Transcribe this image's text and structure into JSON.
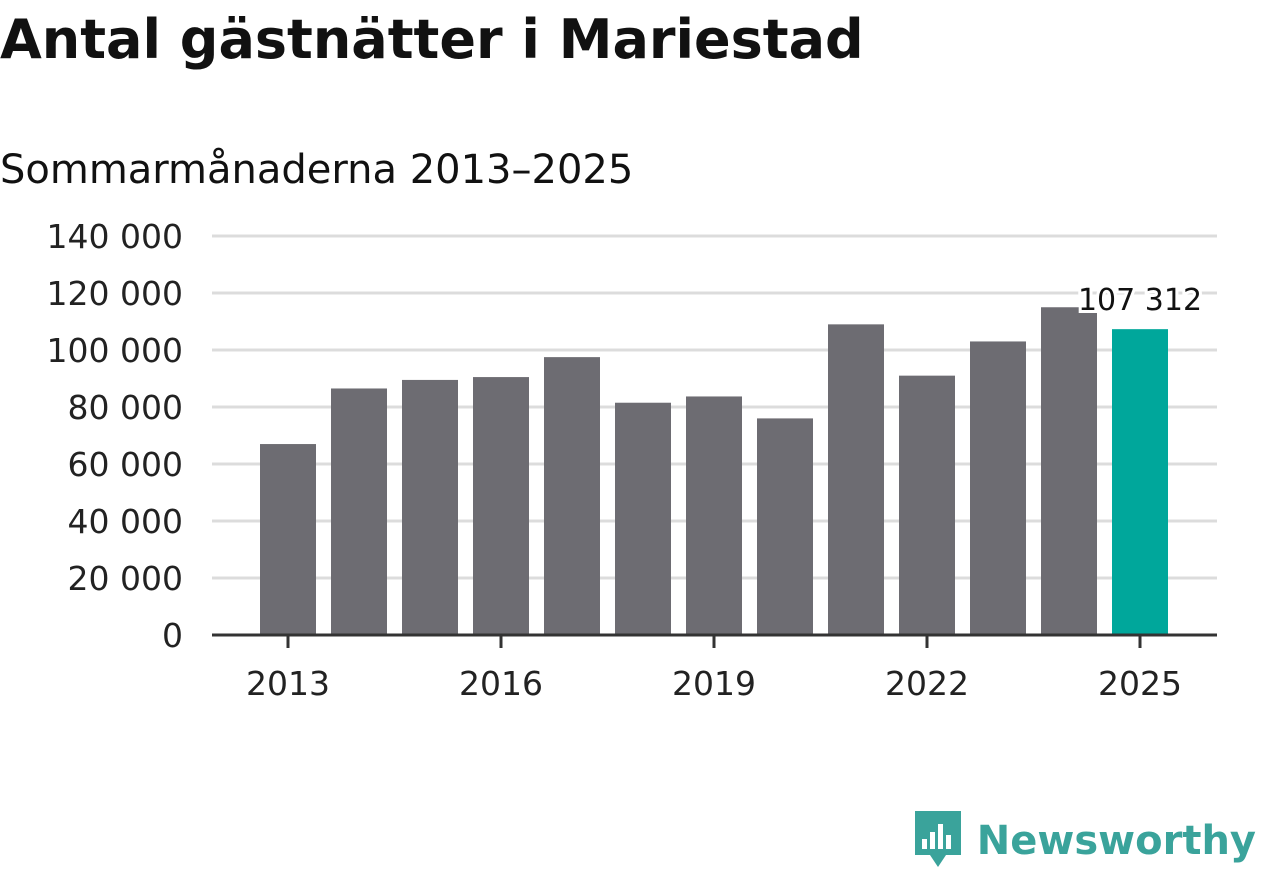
{
  "header": {
    "title": "Antal gästnätter i Mariestad",
    "subtitle": "Sommarmånaderna 2013–2025"
  },
  "brand": {
    "name": "Newsworthy",
    "logo_icon": "bar-chart-speech-bubble-icon",
    "color": "#3aa39b"
  },
  "chart_data": {
    "type": "bar",
    "categories": [
      "2013",
      "2014",
      "2015",
      "2016",
      "2017",
      "2018",
      "2019",
      "2020",
      "2021",
      "2022",
      "2023",
      "2024",
      "2025"
    ],
    "values": [
      67000,
      86500,
      89500,
      90500,
      97500,
      81500,
      83700,
      76000,
      109000,
      91000,
      103000,
      115000,
      107312
    ],
    "ylim": [
      0,
      140000
    ],
    "yticks": [
      0,
      20000,
      40000,
      60000,
      80000,
      100000,
      120000,
      140000
    ],
    "ytick_labels": [
      "0",
      "20 000",
      "40 000",
      "60 000",
      "80 000",
      "100 000",
      "120 000",
      "140 000"
    ],
    "xtick_labels": [
      "2013",
      "2016",
      "2019",
      "2022",
      "2025"
    ],
    "highlight_label": "107 312",
    "grid": true,
    "colors": {
      "bar": "#6d6c72",
      "highlight": "#00a79b",
      "grid": "#dcdcdc",
      "axis": "#333333"
    }
  }
}
